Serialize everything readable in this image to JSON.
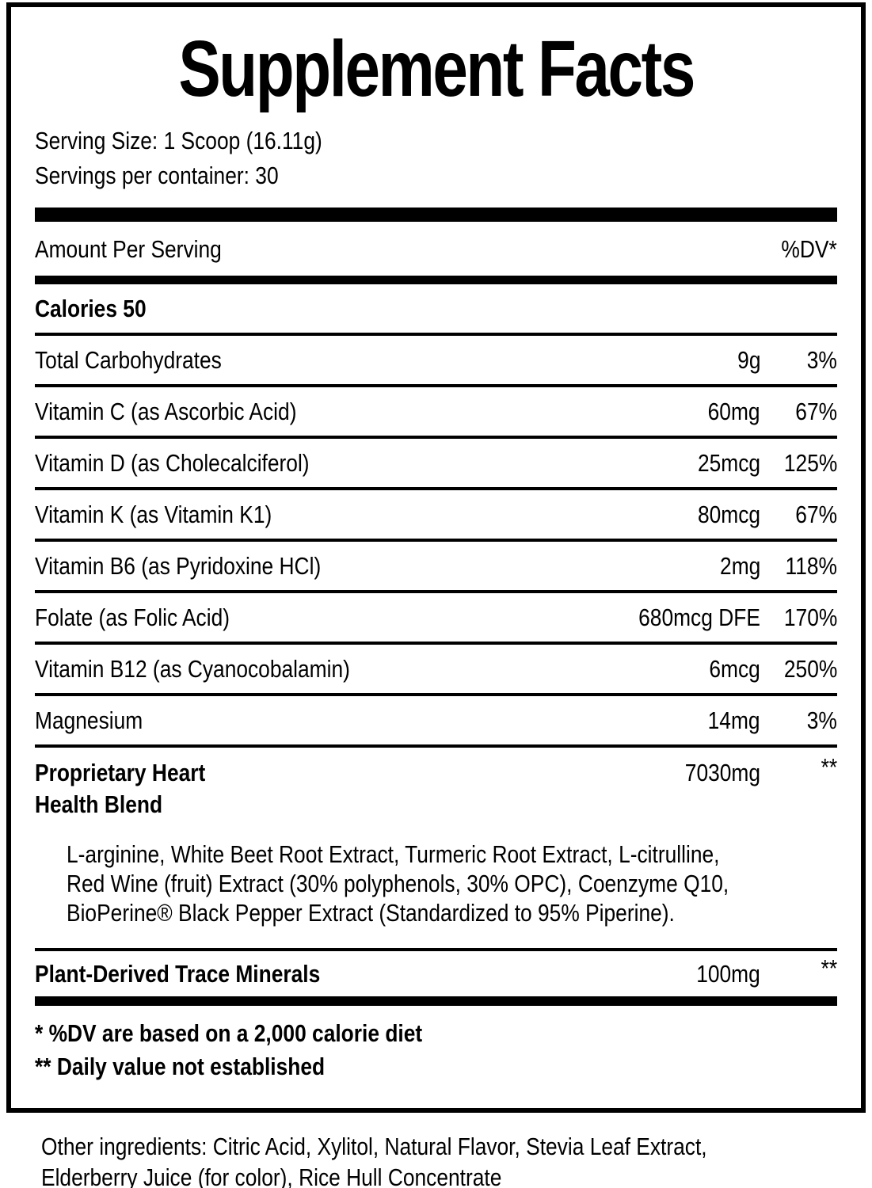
{
  "colors": {
    "text": "#000000",
    "background": "#ffffff",
    "rule": "#000000"
  },
  "label": {
    "title": "Supplement Facts",
    "serving": {
      "size_line": "Serving Size: 1 Scoop (16.11g)",
      "servings_line": "Servings per container: 30"
    },
    "header": {
      "amount_label": "Amount Per Serving",
      "dv_label": "%DV*"
    },
    "calories": {
      "label": "Calories 50"
    },
    "rows": [
      {
        "label": "Total Carbohydrates",
        "amount": "9g",
        "dv": "3%"
      },
      {
        "label": "Vitamin C (as Ascorbic Acid)",
        "amount": "60mg",
        "dv": "67%"
      },
      {
        "label": "Vitamin D (as Cholecalciferol)",
        "amount": "25mcg",
        "dv": "125%"
      },
      {
        "label": "Vitamin K (as Vitamin K1)",
        "amount": "80mcg",
        "dv": "67%"
      },
      {
        "label": "Vitamin B6 (as Pyridoxine HCl)",
        "amount": "2mg",
        "dv": "118%"
      },
      {
        "label": "Folate (as Folic Acid)",
        "amount": "680mcg DFE",
        "dv": "170%"
      },
      {
        "label": "Vitamin B12 (as Cyanocobalamin)",
        "amount": "6mcg",
        "dv": "250%"
      },
      {
        "label": "Magnesium",
        "amount": "14mg",
        "dv": "3%"
      }
    ],
    "proprietary": {
      "name_lines": [
        "Proprietary Heart",
        "Health Blend"
      ],
      "amount": "7030mg",
      "dv": "**",
      "description_lines": [
        "L-arginine, White Beet Root Extract, Turmeric Root Extract, L-citrulline,",
        "Red Wine (fruit) Extract (30% polyphenols, 30% OPC), Coenzyme Q10,",
        "BioPerine® Black Pepper Extract (Standardized to 95% Piperine)."
      ]
    },
    "trace": {
      "label": "Plant-Derived Trace Minerals",
      "amount": "100mg",
      "dv": "**"
    },
    "footnotes": [
      "* %DV are based on a 2,000 calorie diet",
      "** Daily value not established"
    ]
  },
  "other_ingredients_lines": [
    "Other ingredients: Citric Acid, Xylitol, Natural Flavor, Stevia Leaf Extract,",
    "Elderberry Juice (for color), Rice Hull Concentrate"
  ]
}
